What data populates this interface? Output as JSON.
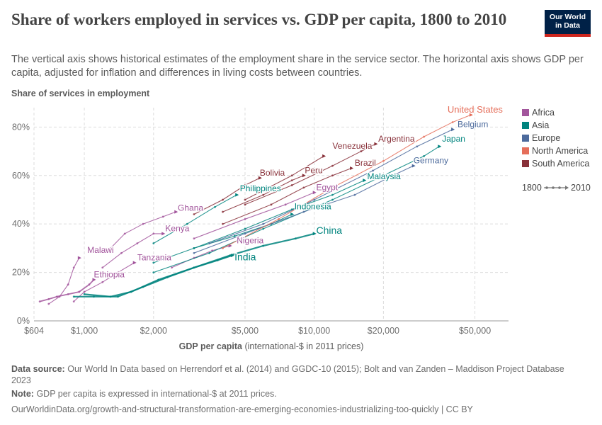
{
  "header": {
    "title": "Share of workers employed in services vs. GDP per capita, 1800 to 2010",
    "subtitle": "The vertical axis shows historical estimates of the employment share in the service sector. The horizontal axis shows GDP per capita, adjusted for inflation and differences in living costs between countries.",
    "logo_line1": "Our World",
    "logo_line2": "in Data"
  },
  "footer": {
    "source_label": "Data source:",
    "source_text": "Our World In Data based on Herrendorf et al. (2014) and GGDC-10 (2015); Bolt and van Zanden – Maddison Project Database 2023",
    "note_label": "Note:",
    "note_text": "GDP per capita is expressed in international-$ at 2011 prices.",
    "url": "OurWorldinData.org/growth-and-structural-transformation-are-emerging-economies-industrializing-too-quickly | CC BY"
  },
  "colors": {
    "Africa": "#a2559c",
    "Asia": "#00847e",
    "Europe": "#4c6a9c",
    "North America": "#e56e5a",
    "South America": "#883039",
    "text": "#5b5b5b",
    "grid": "#dddddd"
  },
  "chart_data": {
    "type": "scatter",
    "title": "Share of workers employed in services vs. GDP per capita, 1800 to 2010",
    "xlabel": "GDP per capita",
    "xlabel_suffix": "(international-$ in 2011 prices)",
    "ylabel": "Share of services in employment",
    "x_scale": "log",
    "xlim": [
      604,
      70000
    ],
    "ylim": [
      0,
      88
    ],
    "x_ticks": [
      {
        "value": 604,
        "label": "$604"
      },
      {
        "value": 1000,
        "label": "$1,000"
      },
      {
        "value": 2000,
        "label": "$2,000"
      },
      {
        "value": 5000,
        "label": "$5,000"
      },
      {
        "value": 10000,
        "label": "$10,000"
      },
      {
        "value": 20000,
        "label": "$20,000"
      },
      {
        "value": 50000,
        "label": "$50,000"
      }
    ],
    "y_ticks": [
      {
        "value": 0,
        "label": "0%"
      },
      {
        "value": 20,
        "label": "20%"
      },
      {
        "value": 40,
        "label": "40%"
      },
      {
        "value": 60,
        "label": "60%"
      },
      {
        "value": 80,
        "label": "80%"
      }
    ],
    "grid": true,
    "legend_position": "right",
    "legend": [
      "Africa",
      "Asia",
      "Europe",
      "North America",
      "South America"
    ],
    "time_range": {
      "start": "1800",
      "end": "2010"
    },
    "countries": [
      {
        "name": "Ethiopia",
        "region": "Africa",
        "label": "Ethiopia",
        "label_x": 1100,
        "label_y": 18,
        "points": [
          [
            640,
            8
          ],
          [
            700,
            9
          ],
          [
            760,
            10
          ],
          [
            850,
            11
          ],
          [
            950,
            12
          ],
          [
            1050,
            15
          ],
          [
            1100,
            17
          ]
        ]
      },
      {
        "name": "Malawi",
        "region": "Africa",
        "label": "Malawi",
        "label_x": 1030,
        "label_y": 28,
        "points": [
          [
            700,
            7
          ],
          [
            780,
            10
          ],
          [
            850,
            15
          ],
          [
            900,
            22
          ],
          [
            950,
            26
          ]
        ]
      },
      {
        "name": "Tanzania",
        "region": "Africa",
        "label": "Tanzania",
        "label_x": 1700,
        "label_y": 25,
        "points": [
          [
            900,
            8
          ],
          [
            1000,
            12
          ],
          [
            1200,
            16
          ],
          [
            1400,
            20
          ],
          [
            1650,
            24
          ]
        ]
      },
      {
        "name": "Kenya",
        "region": "Africa",
        "label": "Kenya",
        "label_x": 2250,
        "label_y": 37,
        "points": [
          [
            1200,
            22
          ],
          [
            1450,
            28
          ],
          [
            1700,
            32
          ],
          [
            2000,
            36
          ],
          [
            2200,
            36
          ]
        ]
      },
      {
        "name": "Ghana",
        "region": "Africa",
        "label": "Ghana",
        "label_x": 2550,
        "label_y": 45.5,
        "points": [
          [
            1300,
            30
          ],
          [
            1500,
            36
          ],
          [
            1800,
            40
          ],
          [
            2200,
            43
          ],
          [
            2500,
            45
          ]
        ]
      },
      {
        "name": "Nigeria",
        "region": "Africa",
        "label": "Nigeria",
        "label_x": 4600,
        "label_y": 32,
        "points": [
          [
            2400,
            22
          ],
          [
            3000,
            26
          ],
          [
            3600,
            29
          ],
          [
            4300,
            31
          ]
        ]
      },
      {
        "name": "India",
        "region": "Asia",
        "label": "India",
        "label_x": 4500,
        "label_y": 25,
        "points": [
          [
            900,
            10
          ],
          [
            1100,
            10
          ],
          [
            1400,
            10
          ],
          [
            1800,
            14
          ],
          [
            2300,
            18
          ],
          [
            3000,
            22
          ],
          [
            3800,
            25
          ],
          [
            4400,
            27
          ]
        ]
      },
      {
        "name": "China",
        "region": "Asia",
        "label": "China",
        "label_x": 10200,
        "label_y": 36,
        "points": [
          [
            1000,
            11
          ],
          [
            1300,
            10
          ],
          [
            1600,
            12
          ],
          [
            2100,
            17
          ],
          [
            3000,
            22
          ],
          [
            4300,
            27
          ],
          [
            6000,
            31
          ],
          [
            8300,
            34
          ],
          [
            10000,
            36
          ]
        ]
      },
      {
        "name": "Indonesia",
        "region": "Asia",
        "label": "Indonesia",
        "label_x": 8200,
        "label_y": 46,
        "points": [
          [
            2000,
            24
          ],
          [
            3000,
            30
          ],
          [
            4500,
            35
          ],
          [
            6500,
            40
          ],
          [
            8000,
            44
          ]
        ]
      },
      {
        "name": "Philippines",
        "region": "Asia",
        "label": "Philippines",
        "label_x": 4750,
        "label_y": 53.5,
        "points": [
          [
            2000,
            32
          ],
          [
            2800,
            40
          ],
          [
            3700,
            47
          ],
          [
            4600,
            52
          ]
        ]
      },
      {
        "name": "Malaysia",
        "region": "Asia",
        "label": "Malaysia",
        "label_x": 17000,
        "label_y": 58.5,
        "points": [
          [
            3000,
            30
          ],
          [
            5000,
            38
          ],
          [
            8000,
            46
          ],
          [
            12000,
            52
          ],
          [
            16500,
            58
          ]
        ]
      },
      {
        "name": "Japan",
        "region": "Asia",
        "label": "Japan",
        "label_x": 36000,
        "label_y": 74,
        "points": [
          [
            2000,
            20
          ],
          [
            3500,
            28
          ],
          [
            6000,
            38
          ],
          [
            12000,
            50
          ],
          [
            20000,
            60
          ],
          [
            30000,
            68
          ],
          [
            35000,
            72
          ]
        ]
      },
      {
        "name": "Germany",
        "region": "Europe",
        "label": "Germany",
        "label_x": 27000,
        "label_y": 65,
        "points": [
          [
            3000,
            28
          ],
          [
            5000,
            36
          ],
          [
            9000,
            45
          ],
          [
            15000,
            52
          ],
          [
            22000,
            60
          ],
          [
            27000,
            64
          ]
        ]
      },
      {
        "name": "Belgium",
        "region": "Europe",
        "label": "Belgium",
        "label_x": 42000,
        "label_y": 80,
        "points": [
          [
            3500,
            32
          ],
          [
            6000,
            40
          ],
          [
            10000,
            50
          ],
          [
            18000,
            62
          ],
          [
            28000,
            72
          ],
          [
            40000,
            79
          ]
        ]
      },
      {
        "name": "United States",
        "region": "North America",
        "label": "United States",
        "label_x": 38000,
        "label_y": 86,
        "points": [
          [
            4000,
            30
          ],
          [
            7000,
            42
          ],
          [
            12000,
            55
          ],
          [
            20000,
            66
          ],
          [
            30000,
            76
          ],
          [
            40000,
            82
          ],
          [
            48000,
            85
          ]
        ]
      },
      {
        "name": "Argentina",
        "region": "South America",
        "label": "Argentina",
        "label_x": 19000,
        "label_y": 74,
        "points": [
          [
            5000,
            48
          ],
          [
            8000,
            56
          ],
          [
            12000,
            64
          ],
          [
            16000,
            70
          ],
          [
            18500,
            73
          ]
        ]
      },
      {
        "name": "Venezuela",
        "region": "South America",
        "label": "Venezuela",
        "label_x": 12000,
        "label_y": 71,
        "points": [
          [
            5000,
            50
          ],
          [
            8000,
            60
          ],
          [
            11000,
            68
          ]
        ]
      },
      {
        "name": "Brazil",
        "region": "South America",
        "label": "Brazil",
        "label_x": 15000,
        "label_y": 64,
        "points": [
          [
            4000,
            40
          ],
          [
            6500,
            48
          ],
          [
            9000,
            55
          ],
          [
            12000,
            60
          ],
          [
            14500,
            63
          ]
        ]
      },
      {
        "name": "Bolivia",
        "region": "South America",
        "label": "Bolivia",
        "label_x": 5800,
        "label_y": 60,
        "points": [
          [
            3000,
            44
          ],
          [
            4000,
            50
          ],
          [
            5000,
            56
          ],
          [
            5800,
            59
          ]
        ]
      },
      {
        "name": "Peru",
        "region": "South America",
        "label": "Peru",
        "label_x": 9100,
        "label_y": 61,
        "points": [
          [
            4000,
            45
          ],
          [
            6000,
            52
          ],
          [
            8000,
            58
          ],
          [
            9000,
            60
          ]
        ]
      },
      {
        "name": "Egypt",
        "region": "Africa",
        "label": "Egypt",
        "label_x": 10200,
        "label_y": 54,
        "points": [
          [
            3000,
            34
          ],
          [
            5000,
            42
          ],
          [
            7500,
            48
          ],
          [
            10000,
            53
          ]
        ]
      }
    ]
  }
}
